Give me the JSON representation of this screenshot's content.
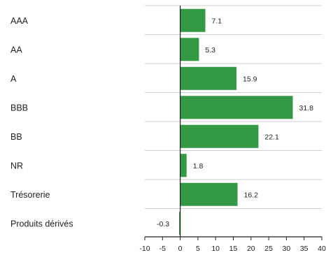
{
  "chart_data": {
    "type": "bar",
    "orientation": "horizontal",
    "categories": [
      "AAA",
      "AA",
      "A",
      "BBB",
      "BB",
      "NR",
      "Trésorerie",
      "Produits dérivés"
    ],
    "values": [
      7.1,
      5.3,
      15.9,
      31.8,
      22.1,
      1.8,
      16.2,
      -0.3
    ],
    "value_labels": [
      "7.1",
      "5.3",
      "15.9",
      "31.8",
      "22.1",
      "1.8",
      "16.2",
      "-0.3"
    ],
    "xlim": [
      -10,
      40
    ],
    "xticks": [
      -10,
      -5,
      0,
      5,
      10,
      15,
      20,
      25,
      30,
      35,
      40
    ],
    "bar_color": "#339944",
    "grid": false,
    "legend": false
  }
}
